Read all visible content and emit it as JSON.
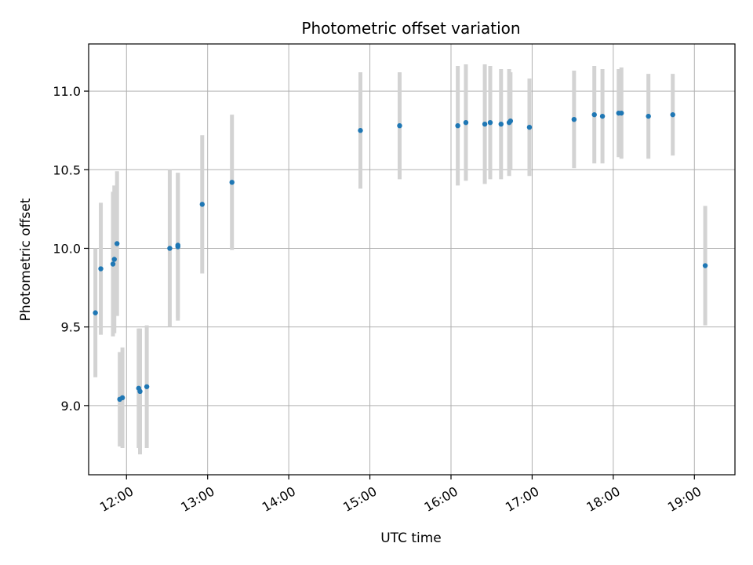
{
  "chart_data": {
    "type": "scatter",
    "title": "Photometric offset variation",
    "xlabel": "UTC time",
    "ylabel": "Photometric offset",
    "x_tick_labels": [
      "12:00",
      "13:00",
      "14:00",
      "15:00",
      "16:00",
      "17:00",
      "18:00",
      "19:00"
    ],
    "y_tick_labels": [
      "9.0",
      "9.5",
      "10.0",
      "10.5",
      "11.0"
    ],
    "y_ticks": [
      9.0,
      9.5,
      10.0,
      10.5,
      11.0
    ],
    "xlim": [
      "11:32",
      "19:30"
    ],
    "ylim": [
      8.56,
      11.3
    ],
    "grid": true,
    "marker_color": "#1f77b4",
    "errorbar_color": "#d3d3d3",
    "points": [
      {
        "time": "11:37",
        "y": 9.59,
        "err": 0.41
      },
      {
        "time": "11:41",
        "y": 9.87,
        "err": 0.42
      },
      {
        "time": "11:50",
        "y": 9.9,
        "err": 0.46
      },
      {
        "time": "11:51",
        "y": 9.93,
        "err": 0.47
      },
      {
        "time": "11:53",
        "y": 10.03,
        "err": 0.46
      },
      {
        "time": "11:55",
        "y": 9.04,
        "err": 0.3
      },
      {
        "time": "11:57",
        "y": 9.05,
        "err": 0.32
      },
      {
        "time": "12:09",
        "y": 9.11,
        "err": 0.38
      },
      {
        "time": "12:10",
        "y": 9.09,
        "err": 0.4
      },
      {
        "time": "12:15",
        "y": 9.12,
        "err": 0.39
      },
      {
        "time": "12:32",
        "y": 10.0,
        "err": 0.5
      },
      {
        "time": "12:38",
        "y": 10.01,
        "err": 0.47
      },
      {
        "time": "12:38",
        "y": 10.02,
        "err": 0.46
      },
      {
        "time": "12:56",
        "y": 10.28,
        "err": 0.44
      },
      {
        "time": "13:18",
        "y": 10.42,
        "err": 0.43
      },
      {
        "time": "14:53",
        "y": 10.75,
        "err": 0.37
      },
      {
        "time": "15:22",
        "y": 10.78,
        "err": 0.34
      },
      {
        "time": "16:05",
        "y": 10.78,
        "err": 0.38
      },
      {
        "time": "16:11",
        "y": 10.8,
        "err": 0.37
      },
      {
        "time": "16:25",
        "y": 10.79,
        "err": 0.38
      },
      {
        "time": "16:29",
        "y": 10.8,
        "err": 0.36
      },
      {
        "time": "16:37",
        "y": 10.79,
        "err": 0.35
      },
      {
        "time": "16:43",
        "y": 10.8,
        "err": 0.34
      },
      {
        "time": "16:44",
        "y": 10.81,
        "err": 0.31
      },
      {
        "time": "16:58",
        "y": 10.77,
        "err": 0.31
      },
      {
        "time": "17:31",
        "y": 10.82,
        "err": 0.31
      },
      {
        "time": "17:46",
        "y": 10.85,
        "err": 0.31
      },
      {
        "time": "17:52",
        "y": 10.84,
        "err": 0.3
      },
      {
        "time": "18:04",
        "y": 10.86,
        "err": 0.28
      },
      {
        "time": "18:06",
        "y": 10.86,
        "err": 0.29
      },
      {
        "time": "18:26",
        "y": 10.84,
        "err": 0.27
      },
      {
        "time": "18:44",
        "y": 10.85,
        "err": 0.26
      },
      {
        "time": "19:08",
        "y": 9.89,
        "err": 0.38
      }
    ]
  }
}
